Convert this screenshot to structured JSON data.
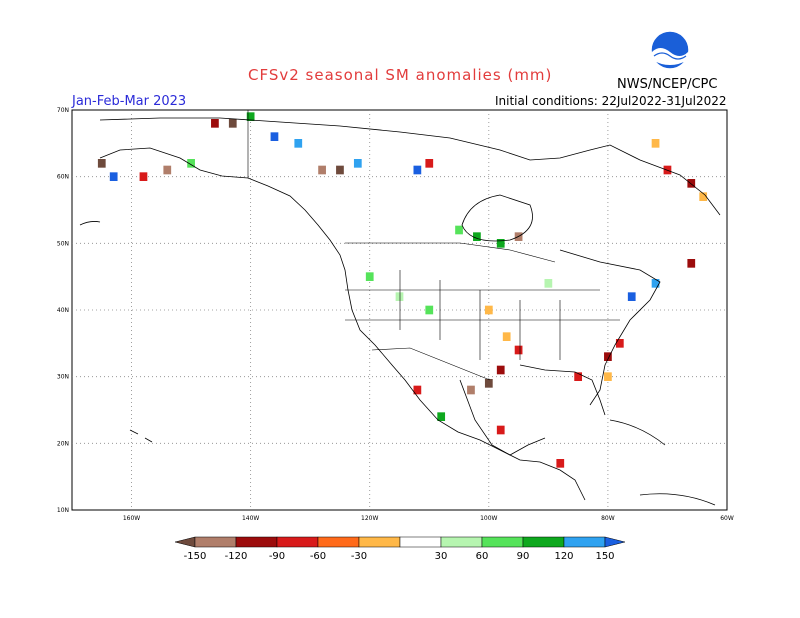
{
  "title": "CFSv2 seasonal SM anomalies (mm)",
  "season": "Jan-Feb-Mar 2023",
  "initial_conditions": "Initial conditions: 22Jul2022-31Jul2022",
  "credit": "NWS/NCEP/CPC",
  "logo_text": "NOAA",
  "map": {
    "lat_labels": [
      "70N",
      "60N",
      "50N",
      "40N",
      "30N",
      "20N",
      "10N"
    ],
    "lon_labels": [
      "160W",
      "140W",
      "120W",
      "100W",
      "80W",
      "60W"
    ],
    "lat_range": [
      10,
      70
    ],
    "lon_range": [
      -170,
      -60
    ]
  },
  "colorbar": {
    "labels": [
      "-150",
      "-120",
      "-90",
      "-60",
      "-30",
      "30",
      "60",
      "90",
      "120",
      "150"
    ],
    "colors": [
      "#6e4a3c",
      "#b07e6a",
      "#9c0c0c",
      "#d81a1a",
      "#ff6a1a",
      "#ffb848",
      "#ffffff",
      "#b6f5b0",
      "#55e35a",
      "#0ea81e",
      "#2fa2f0",
      "#1a5fe0"
    ]
  },
  "anomaly_cells": [
    {
      "lon": -165,
      "lat": 62,
      "v": -150
    },
    {
      "lon": -163,
      "lat": 60,
      "v": 150
    },
    {
      "lon": -158,
      "lat": 60,
      "v": -60
    },
    {
      "lon": -154,
      "lat": 61,
      "v": -120
    },
    {
      "lon": -150,
      "lat": 62,
      "v": 60
    },
    {
      "lon": -146,
      "lat": 68,
      "v": -90
    },
    {
      "lon": -143,
      "lat": 68,
      "v": -150
    },
    {
      "lon": -140,
      "lat": 69,
      "v": 90
    },
    {
      "lon": -136,
      "lat": 66,
      "v": 150
    },
    {
      "lon": -132,
      "lat": 65,
      "v": 120
    },
    {
      "lon": -128,
      "lat": 61,
      "v": -120
    },
    {
      "lon": -125,
      "lat": 61,
      "v": -150
    },
    {
      "lon": -122,
      "lat": 62,
      "v": 120
    },
    {
      "lon": -112,
      "lat": 61,
      "v": 150
    },
    {
      "lon": -110,
      "lat": 62,
      "v": -60
    },
    {
      "lon": -105,
      "lat": 52,
      "v": 60
    },
    {
      "lon": -102,
      "lat": 51,
      "v": 90
    },
    {
      "lon": -98,
      "lat": 50,
      "v": 90
    },
    {
      "lon": -95,
      "lat": 51,
      "v": -120
    },
    {
      "lon": -100,
      "lat": 40,
      "v": -30
    },
    {
      "lon": -97,
      "lat": 36,
      "v": -30
    },
    {
      "lon": -95,
      "lat": 34,
      "v": -60
    },
    {
      "lon": -98,
      "lat": 31,
      "v": -90
    },
    {
      "lon": -100,
      "lat": 29,
      "v": -150
    },
    {
      "lon": -103,
      "lat": 28,
      "v": -120
    },
    {
      "lon": -98,
      "lat": 22,
      "v": -60
    },
    {
      "lon": -85,
      "lat": 30,
      "v": -60
    },
    {
      "lon": -80,
      "lat": 33,
      "v": -90
    },
    {
      "lon": -78,
      "lat": 35,
      "v": -60
    },
    {
      "lon": -80,
      "lat": 30,
      "v": -30
    },
    {
      "lon": -76,
      "lat": 42,
      "v": 150
    },
    {
      "lon": -72,
      "lat": 44,
      "v": 120
    },
    {
      "lon": -66,
      "lat": 47,
      "v": -90
    },
    {
      "lon": -70,
      "lat": 61,
      "v": -60
    },
    {
      "lon": -66,
      "lat": 59,
      "v": -90
    },
    {
      "lon": -64,
      "lat": 57,
      "v": -30
    },
    {
      "lon": -72,
      "lat": 65,
      "v": -30
    },
    {
      "lon": -88,
      "lat": 17,
      "v": -60
    },
    {
      "lon": -120,
      "lat": 45,
      "v": 60
    },
    {
      "lon": -115,
      "lat": 42,
      "v": 30
    },
    {
      "lon": -110,
      "lat": 40,
      "v": 60
    },
    {
      "lon": -90,
      "lat": 44,
      "v": 30
    },
    {
      "lon": -112,
      "lat": 28,
      "v": -60
    },
    {
      "lon": -108,
      "lat": 24,
      "v": 90
    }
  ]
}
